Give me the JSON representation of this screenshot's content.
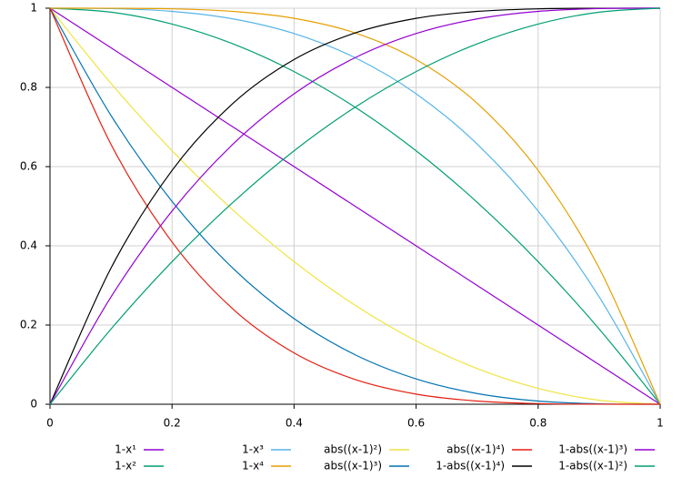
{
  "chart_data": {
    "type": "line",
    "x": [
      0,
      0.1,
      0.2,
      0.3,
      0.4,
      0.5,
      0.6,
      0.7,
      0.8,
      0.9,
      1
    ],
    "xlim": [
      0,
      1
    ],
    "ylim": [
      0,
      1
    ],
    "xticks": [
      0,
      0.2,
      0.4,
      0.6,
      0.8,
      1
    ],
    "yticks": [
      0,
      0.2,
      0.4,
      0.6,
      0.8,
      1
    ],
    "grid": true,
    "legend": "bottom",
    "series": [
      {
        "name": "1-x¹",
        "color": "#9400d3",
        "values": [
          1,
          0.9,
          0.8,
          0.7,
          0.6,
          0.5,
          0.4,
          0.3,
          0.2,
          0.1,
          0
        ]
      },
      {
        "name": "1-x²",
        "color": "#009e73",
        "values": [
          1,
          0.99,
          0.96,
          0.91,
          0.84,
          0.75,
          0.64,
          0.51,
          0.36,
          0.19,
          0
        ]
      },
      {
        "name": "1-x³",
        "color": "#56b4e9",
        "values": [
          1,
          0.999,
          0.992,
          0.973,
          0.936,
          0.875,
          0.784,
          0.657,
          0.488,
          0.271,
          0
        ]
      },
      {
        "name": "1-x⁴",
        "color": "#e69f00",
        "values": [
          1,
          0.9999,
          0.9984,
          0.9919,
          0.9744,
          0.9375,
          0.8704,
          0.7599,
          0.5904,
          0.3439,
          0
        ]
      },
      {
        "name": "abs((x-1)²)",
        "color": "#f0e442",
        "values": [
          1,
          0.81,
          0.64,
          0.49,
          0.36,
          0.25,
          0.16,
          0.09,
          0.04,
          0.01,
          0
        ]
      },
      {
        "name": "abs((x-1)³)",
        "color": "#0072b2",
        "values": [
          1,
          0.729,
          0.512,
          0.343,
          0.216,
          0.125,
          0.064,
          0.027,
          0.008,
          0.001,
          0
        ]
      },
      {
        "name": "abs((x-1)⁴)",
        "color": "#e51e10",
        "values": [
          1,
          0.6561,
          0.4096,
          0.2401,
          0.1296,
          0.0625,
          0.0256,
          0.0081,
          0.0016,
          0.0001,
          0
        ]
      },
      {
        "name": "1-abs((x-1)⁴)",
        "color": "#000000",
        "values": [
          0,
          0.3439,
          0.5904,
          0.7599,
          0.8704,
          0.9375,
          0.9744,
          0.9919,
          0.9984,
          0.9999,
          1
        ]
      },
      {
        "name": "1-abs((x-1)³)",
        "color": "#9400d3",
        "values": [
          0,
          0.271,
          0.488,
          0.657,
          0.784,
          0.875,
          0.936,
          0.973,
          0.992,
          0.999,
          1
        ]
      },
      {
        "name": "1-abs((x-1)²)",
        "color": "#009e73",
        "values": [
          0,
          0.19,
          0.36,
          0.51,
          0.64,
          0.75,
          0.84,
          0.91,
          0.96,
          0.99,
          1
        ]
      }
    ]
  }
}
